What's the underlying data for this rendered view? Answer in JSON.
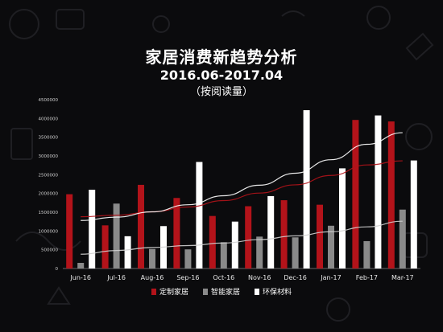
{
  "chart_data": {
    "type": "bar",
    "title": "家居消费新趋势分析",
    "subtitle": "2016.06-2017.04",
    "note": "（按阅读量）",
    "xlabel": "",
    "ylabel": "",
    "ylim": [
      0,
      4500000
    ],
    "yticks": [
      "0",
      "500000",
      "1000000",
      "1500000",
      "2000000",
      "2500000",
      "3000000",
      "3500000",
      "4000000",
      "4500000"
    ],
    "grid": false,
    "legend_position": "bottom",
    "categories": [
      "Jun-16",
      "Jul-16",
      "Aug-16",
      "Sep-16",
      "Oct-16",
      "Nov-16",
      "Dec-16",
      "Jan-17",
      "Feb-17",
      "Mar-17"
    ],
    "series": [
      {
        "name": "定制家居",
        "color": "#b3131a",
        "values": [
          1980000,
          1150000,
          2230000,
          1880000,
          1400000,
          1660000,
          1820000,
          1700000,
          3960000,
          3920000
        ]
      },
      {
        "name": "智能家居",
        "color": "#8a8a8a",
        "values": [
          150000,
          1730000,
          520000,
          510000,
          700000,
          850000,
          830000,
          1140000,
          730000,
          1570000
        ]
      },
      {
        "name": "环保材料",
        "color": "#ffffff",
        "values": [
          2100000,
          860000,
          1130000,
          2840000,
          1250000,
          1930000,
          4220000,
          2670000,
          4080000,
          2880000
        ]
      }
    ],
    "trendlines": [
      {
        "series": "定制家居",
        "color": "#b3131a",
        "values": [
          1380000,
          1420000,
          1510000,
          1640000,
          1810000,
          2010000,
          2230000,
          2480000,
          2760000,
          2870000
        ]
      },
      {
        "series": "智能家居",
        "color": "#d0d0d0",
        "values": [
          380000,
          480000,
          560000,
          610000,
          680000,
          770000,
          870000,
          980000,
          1110000,
          1260000
        ]
      },
      {
        "series": "环保材料",
        "color": "#ffffff",
        "values": [
          1280000,
          1370000,
          1510000,
          1700000,
          1940000,
          2220000,
          2540000,
          2900000,
          3310000,
          3620000
        ]
      }
    ]
  }
}
